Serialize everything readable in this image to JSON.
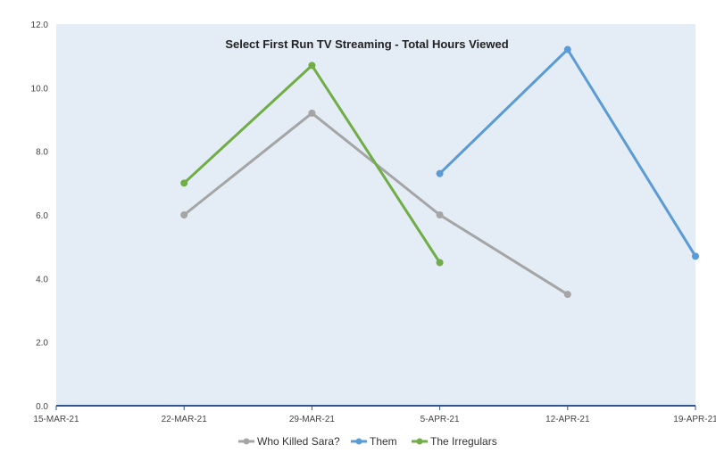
{
  "chart_data": {
    "type": "line",
    "title": "Select First Run TV Streaming - Total Hours Viewed",
    "xlabel": "",
    "ylabel": "",
    "x_ticks": [
      "15-MAR-21",
      "22-MAR-21",
      "29-MAR-21",
      "5-APR-21",
      "12-APR-21",
      "19-APR-21"
    ],
    "xlim": [
      "15-MAR-21",
      "19-APR-21"
    ],
    "ylim": [
      0,
      12
    ],
    "y_ticks": [
      "0.0",
      "2.0",
      "4.0",
      "6.0",
      "8.0",
      "10.0",
      "12.0"
    ],
    "grid": false,
    "legend_position": "bottom",
    "series": [
      {
        "name": "Who Killed Sara?",
        "color": "#a5a5a5",
        "points": [
          {
            "x": "22-MAR-21",
            "y": 6.0
          },
          {
            "x": "29-MAR-21",
            "y": 9.2
          },
          {
            "x": "5-APR-21",
            "y": 6.0
          },
          {
            "x": "12-APR-21",
            "y": 3.5
          }
        ]
      },
      {
        "name": "Them",
        "color": "#5b9bd5",
        "points": [
          {
            "x": "5-APR-21",
            "y": 7.3
          },
          {
            "x": "12-APR-21",
            "y": 11.2
          },
          {
            "x": "19-APR-21",
            "y": 4.7
          }
        ]
      },
      {
        "name": "The Irregulars",
        "color": "#70ad47",
        "points": [
          {
            "x": "22-MAR-21",
            "y": 7.0
          },
          {
            "x": "29-MAR-21",
            "y": 10.7
          },
          {
            "x": "5-APR-21",
            "y": 4.5
          }
        ]
      }
    ],
    "plot_background": "#e4ecf5",
    "axis_color": "#2f5597"
  }
}
